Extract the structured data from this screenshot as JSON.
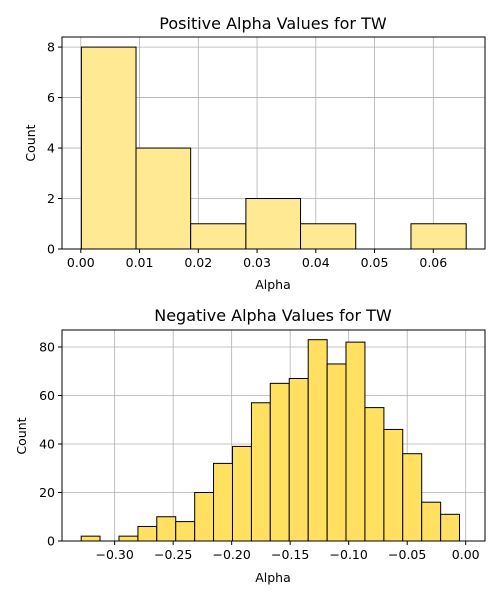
{
  "chart_data": [
    {
      "type": "bar",
      "title": "Positive Alpha Values for TW",
      "xlabel": "Alpha",
      "ylabel": "Count",
      "color": "#ffe993",
      "grid": true,
      "xlim": [
        -0.0032,
        0.0688
      ],
      "ylim": [
        0,
        8.4
      ],
      "xticks": [
        0.0,
        0.01,
        0.02,
        0.03,
        0.04,
        0.05,
        0.06
      ],
      "xtick_labels": [
        "0.00",
        "0.01",
        "0.02",
        "0.03",
        "0.04",
        "0.05",
        "0.06"
      ],
      "yticks": [
        0,
        2,
        4,
        6,
        8
      ],
      "ytick_labels": [
        "0",
        "2",
        "4",
        "6",
        "8"
      ],
      "bins": [
        {
          "start": 0.0001,
          "end": 0.0094,
          "count": 8
        },
        {
          "start": 0.0094,
          "end": 0.0187,
          "count": 4
        },
        {
          "start": 0.0187,
          "end": 0.0281,
          "count": 1
        },
        {
          "start": 0.0281,
          "end": 0.0374,
          "count": 2
        },
        {
          "start": 0.0374,
          "end": 0.0468,
          "count": 1
        },
        {
          "start": 0.0468,
          "end": 0.0562,
          "count": 0
        },
        {
          "start": 0.0562,
          "end": 0.0656,
          "count": 1
        }
      ]
    },
    {
      "type": "bar",
      "title": "Negative Alpha Values for TW",
      "xlabel": "Alpha",
      "ylabel": "Count",
      "color": "#ffe060",
      "grid": true,
      "xlim": [
        -0.345,
        0.0165
      ],
      "ylim": [
        0,
        87
      ],
      "xticks": [
        -0.3,
        -0.25,
        -0.2,
        -0.15,
        -0.1,
        -0.05,
        0.0
      ],
      "xtick_labels": [
        "−0.30",
        "−0.25",
        "−0.20",
        "−0.15",
        "−0.10",
        "−0.05",
        "0.00"
      ],
      "yticks": [
        0,
        20,
        40,
        60,
        80
      ],
      "ytick_labels": [
        "0",
        "20",
        "40",
        "60",
        "80"
      ],
      "bins": [
        {
          "start": -0.3286,
          "end": -0.3125,
          "count": 2
        },
        {
          "start": -0.3125,
          "end": -0.2963,
          "count": 0
        },
        {
          "start": -0.2963,
          "end": -0.2801,
          "count": 2
        },
        {
          "start": -0.2801,
          "end": -0.264,
          "count": 6
        },
        {
          "start": -0.264,
          "end": -0.2478,
          "count": 10
        },
        {
          "start": -0.2478,
          "end": -0.2316,
          "count": 8
        },
        {
          "start": -0.2316,
          "end": -0.2155,
          "count": 20
        },
        {
          "start": -0.2155,
          "end": -0.1993,
          "count": 32
        },
        {
          "start": -0.1993,
          "end": -0.1831,
          "count": 39
        },
        {
          "start": -0.1831,
          "end": -0.167,
          "count": 57
        },
        {
          "start": -0.167,
          "end": -0.1508,
          "count": 65
        },
        {
          "start": -0.1508,
          "end": -0.1346,
          "count": 67
        },
        {
          "start": -0.1346,
          "end": -0.1184,
          "count": 83
        },
        {
          "start": -0.1184,
          "end": -0.1023,
          "count": 73
        },
        {
          "start": -0.1023,
          "end": -0.0861,
          "count": 82
        },
        {
          "start": -0.0861,
          "end": -0.0699,
          "count": 55
        },
        {
          "start": -0.0699,
          "end": -0.0538,
          "count": 46
        },
        {
          "start": -0.0538,
          "end": -0.0376,
          "count": 36
        },
        {
          "start": -0.0376,
          "end": -0.0214,
          "count": 16
        },
        {
          "start": -0.0214,
          "end": -0.0053,
          "count": 11
        }
      ]
    }
  ]
}
